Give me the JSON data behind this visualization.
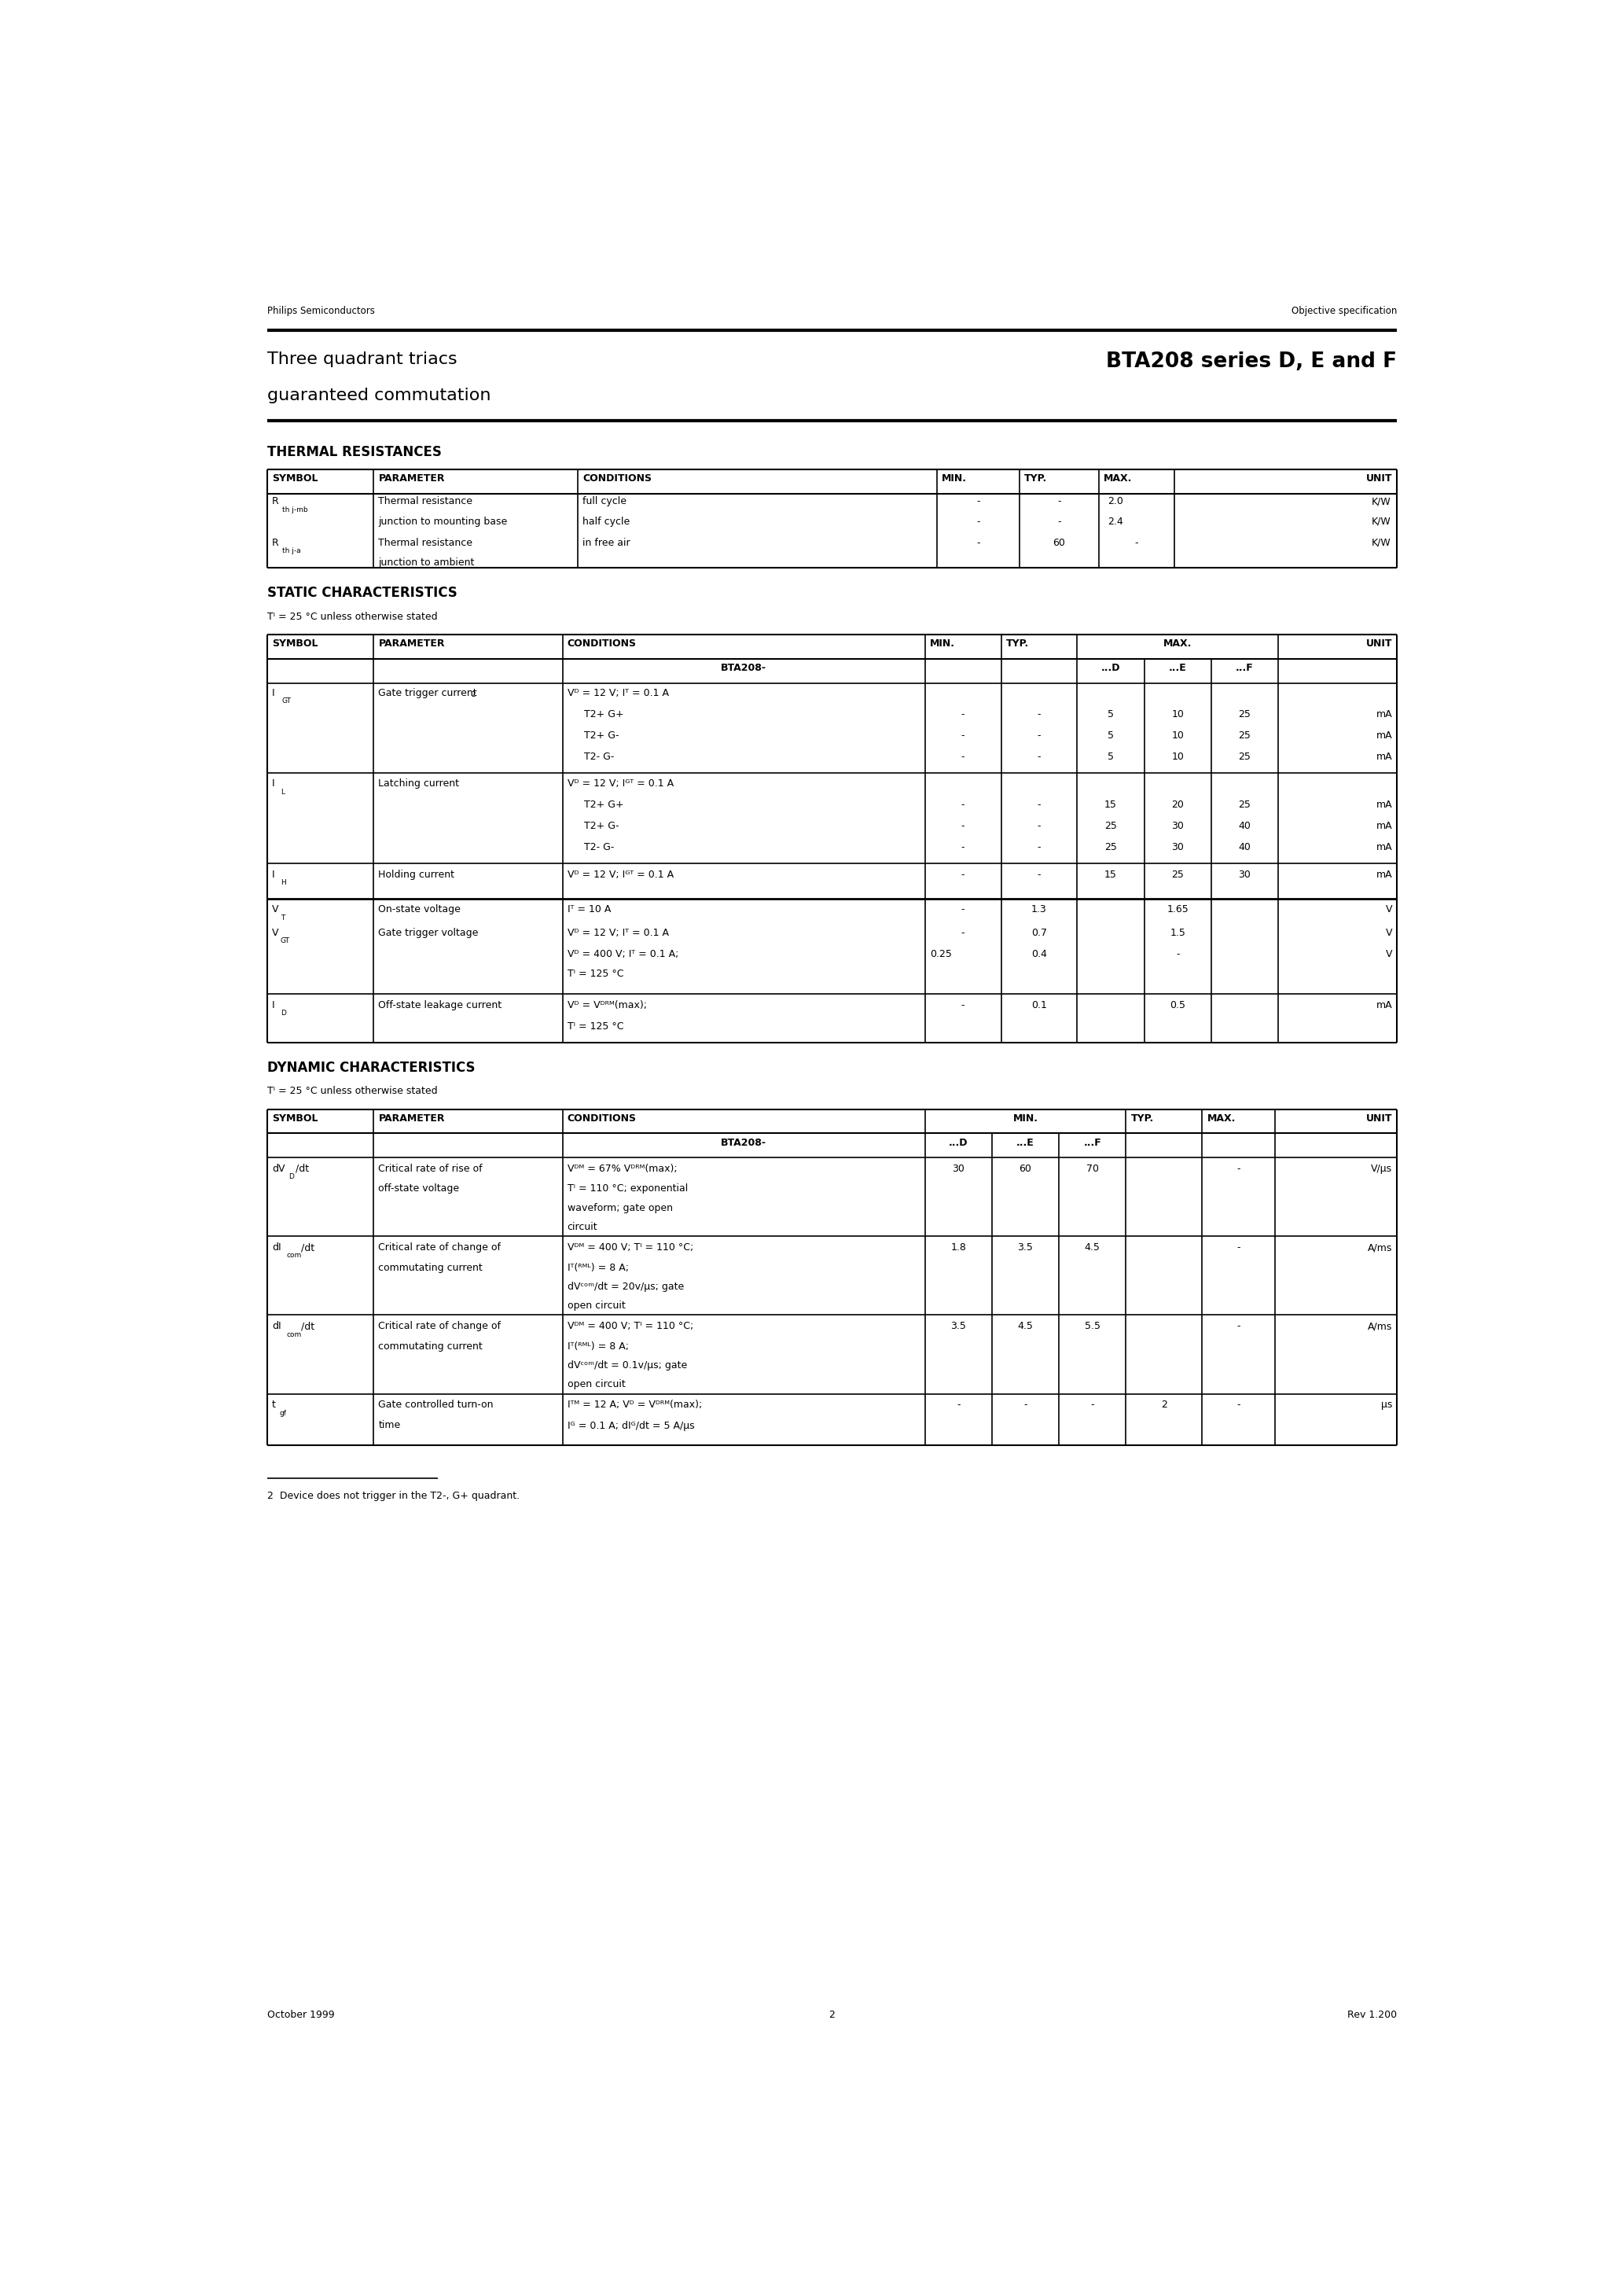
{
  "page_width": 20.66,
  "page_height": 29.2,
  "L": 1.05,
  "R": 19.6,
  "header_left": "Philips Semiconductors",
  "header_right": "Objective specification",
  "title_left1": "Three quadrant triacs",
  "title_left2": "guaranteed commutation",
  "title_right": "BTA208 series D, E and F",
  "sec1": "THERMAL RESISTANCES",
  "sec2": "STATIC CHARACTERISTICS",
  "sec2sub": "Tⁱ = 25 °C unless otherwise stated",
  "sec3": "DYNAMIC CHARACTERISTICS",
  "sec3sub": "Tⁱ = 25 °C unless otherwise stated",
  "footnote": "2  Device does not trigger in the T2-, G+ quadrant.",
  "foot_left": "October 1999",
  "foot_center": "2",
  "foot_right": "Rev 1.200"
}
